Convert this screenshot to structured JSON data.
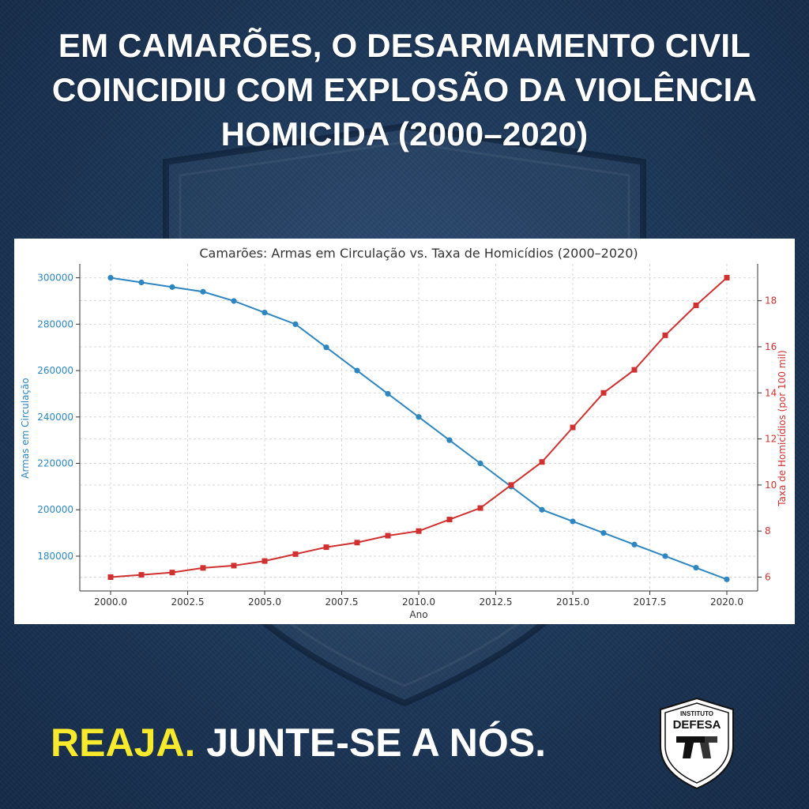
{
  "headline": {
    "line1": "EM CAMARÕES, O DESARMAMENTO CIVIL",
    "line2": "COINCIDIU COM EXPLOSÃO DA VIOLÊNCIA",
    "line3": "HOMICIDA (2000–2020)"
  },
  "cta": {
    "highlight": "REAJA.",
    "rest": "JUNTE-SE A NÓS."
  },
  "logo": {
    "text": "DEFESA",
    "top_text": "INSTITUTO"
  },
  "colors": {
    "background": "#1d3a5e",
    "guns_series": "#2e86c1",
    "homicide_series": "#d03030",
    "cta_highlight": "#f7e92c"
  },
  "chart_data": {
    "type": "line",
    "title": "Camarões: Armas em Circulação vs. Taxa de Homicídios (2000–2020)",
    "xlabel": "Ano",
    "ylabel": "Armas em Circulação",
    "y2label": "Taxa de Homicídios (por 100 mil)",
    "x": [
      2000,
      2001,
      2002,
      2003,
      2004,
      2005,
      2006,
      2007,
      2008,
      2009,
      2010,
      2011,
      2012,
      2013,
      2014,
      2015,
      2016,
      2017,
      2018,
      2019,
      2020
    ],
    "xlim": [
      1999,
      2021
    ],
    "ylim": [
      165000,
      306000
    ],
    "y2lim": [
      5.4,
      19.6
    ],
    "xticks": [
      "2000.0",
      "2002.5",
      "2005.0",
      "2007.5",
      "2010.0",
      "2012.5",
      "2015.0",
      "2017.5",
      "2020.0"
    ],
    "yticks": [
      "180000",
      "200000",
      "220000",
      "240000",
      "260000",
      "280000",
      "300000"
    ],
    "y2ticks": [
      "6",
      "8",
      "10",
      "12",
      "14",
      "16",
      "18"
    ],
    "grid": true,
    "series": [
      {
        "name": "Armas em Circulação",
        "axis": "left",
        "marker": "circle",
        "values": [
          300000,
          298000,
          296000,
          294000,
          290000,
          285000,
          280000,
          270000,
          260000,
          250000,
          240000,
          230000,
          220000,
          210000,
          200000,
          195000,
          190000,
          185000,
          180000,
          175000,
          170000
        ]
      },
      {
        "name": "Taxa de Homicídios (por 100 mil)",
        "axis": "right",
        "marker": "square",
        "values": [
          6.0,
          6.1,
          6.2,
          6.4,
          6.5,
          6.7,
          7.0,
          7.3,
          7.5,
          7.8,
          8.0,
          8.5,
          9.0,
          10.0,
          11.0,
          12.5,
          14.0,
          15.0,
          16.5,
          17.8,
          19.0
        ]
      }
    ]
  }
}
